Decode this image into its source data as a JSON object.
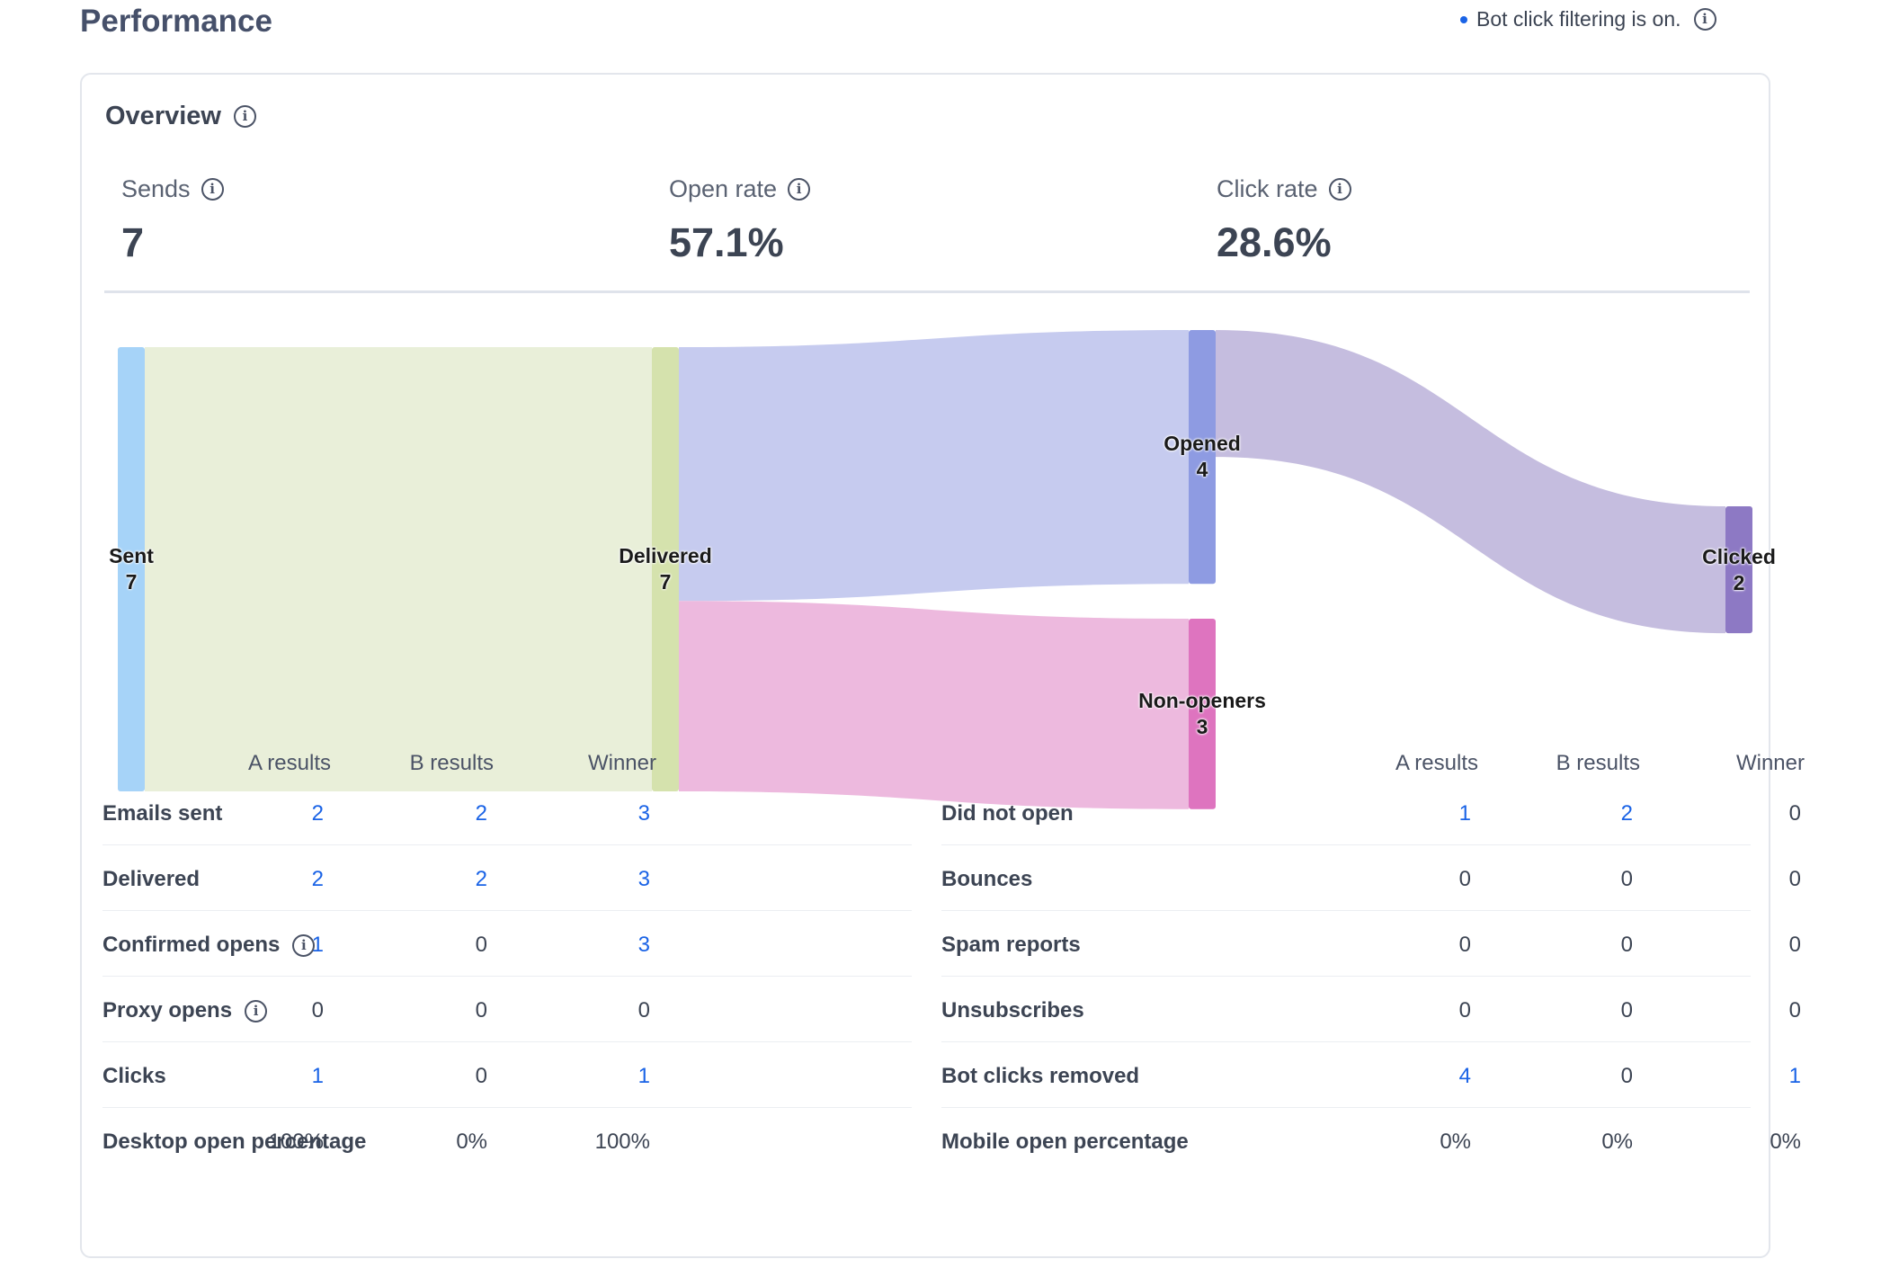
{
  "page": {
    "title": "Performance",
    "bot_filter_text": "Bot click filtering is on."
  },
  "overview": {
    "title": "Overview",
    "stats": [
      {
        "label": "Sends",
        "value": "7"
      },
      {
        "label": "Open rate",
        "value": "57.1%"
      },
      {
        "label": "Click rate",
        "value": "28.6%"
      }
    ]
  },
  "funnel": {
    "nodes": [
      {
        "name": "Sent",
        "value": "7",
        "color": "#a6d3f8"
      },
      {
        "name": "Delivered",
        "value": "7",
        "color": "#d5e2ad"
      },
      {
        "name": "Opened",
        "value": "4",
        "color": "#8e9be2"
      },
      {
        "name": "Non-openers",
        "value": "3",
        "color": "#de74bf"
      },
      {
        "name": "Clicked",
        "value": "2",
        "color": "#8d79c4"
      }
    ],
    "links": [
      {
        "from": "Sent",
        "to": "Delivered",
        "value": 7,
        "color": "#e9efd9"
      },
      {
        "from": "Delivered",
        "to": "Opened",
        "value": 4,
        "color": "#c6cbef"
      },
      {
        "from": "Delivered",
        "to": "Non-openers",
        "value": 3,
        "color": "#edb9de"
      },
      {
        "from": "Opened",
        "to": "Clicked",
        "value": 2,
        "color": "#c5bddf"
      }
    ]
  },
  "results_left": {
    "headers": [
      "A results",
      "B results",
      "Winner"
    ],
    "rows": [
      {
        "label": "Emails sent",
        "a": "2",
        "b": "2",
        "w": "3",
        "info": false
      },
      {
        "label": "Delivered",
        "a": "2",
        "b": "2",
        "w": "3",
        "info": false
      },
      {
        "label": "Confirmed opens",
        "a": "1",
        "b": "0",
        "w": "3",
        "info": true
      },
      {
        "label": "Proxy opens",
        "a": "0",
        "b": "0",
        "w": "0",
        "info": true
      },
      {
        "label": "Clicks",
        "a": "1",
        "b": "0",
        "w": "1",
        "info": false
      },
      {
        "label": "Desktop open percentage",
        "a": "100%",
        "b": "0%",
        "w": "100%",
        "info": false
      }
    ]
  },
  "results_right": {
    "headers": [
      "A results",
      "B results",
      "Winner"
    ],
    "rows": [
      {
        "label": "Did not open",
        "a": "1",
        "b": "2",
        "w": "0"
      },
      {
        "label": "Bounces",
        "a": "0",
        "b": "0",
        "w": "0"
      },
      {
        "label": "Spam reports",
        "a": "0",
        "b": "0",
        "w": "0"
      },
      {
        "label": "Unsubscribes",
        "a": "0",
        "b": "0",
        "w": "0"
      },
      {
        "label": "Bot clicks removed",
        "a": "4",
        "b": "0",
        "w": "1"
      },
      {
        "label": "Mobile open percentage",
        "a": "0%",
        "b": "0%",
        "w": "0%"
      }
    ]
  },
  "colors": {
    "link_blue": "#1a63e6",
    "text_dark": "#3c4453"
  }
}
